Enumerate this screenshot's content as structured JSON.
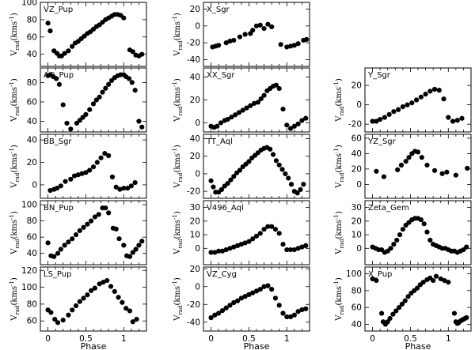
{
  "chart_data": [
    {
      "type": "scatter",
      "title": "VZ_Pup",
      "ylabel": "Vrad(kms-1)",
      "xlim": [
        -0.1,
        1.3
      ],
      "ylim": [
        26,
        100
      ],
      "yticks": [
        40,
        60,
        80,
        100
      ],
      "x": [
        0.0,
        0.03,
        0.08,
        0.12,
        0.15,
        0.18,
        0.22,
        0.27,
        0.32,
        0.36,
        0.4,
        0.44,
        0.48,
        0.52,
        0.56,
        0.6,
        0.64,
        0.68,
        0.72,
        0.76,
        0.8,
        0.84,
        0.88,
        0.92,
        0.96,
        1.0,
        1.08,
        1.12,
        1.16,
        1.2,
        1.24
      ],
      "y": [
        76,
        67,
        44,
        41,
        38,
        38,
        41,
        44,
        49,
        53,
        55,
        58,
        61,
        64,
        66,
        69,
        72,
        74,
        77,
        80,
        82,
        84,
        86,
        86,
        85,
        82,
        45,
        43,
        39,
        38,
        40
      ]
    },
    {
      "type": "scatter",
      "title": "AQ_Pup",
      "ylabel": "Vrad(kms-1)",
      "xlim": [
        -0.1,
        1.3
      ],
      "ylim": [
        29,
        95
      ],
      "yticks": [
        40,
        60,
        80
      ],
      "x": [
        0.0,
        0.03,
        0.07,
        0.11,
        0.15,
        0.2,
        0.25,
        0.3,
        0.38,
        0.42,
        0.46,
        0.5,
        0.55,
        0.6,
        0.64,
        0.68,
        0.72,
        0.76,
        0.8,
        0.84,
        0.88,
        0.92,
        0.96,
        1.0,
        1.03,
        1.07,
        1.11,
        1.15,
        1.2,
        1.24
      ],
      "y": [
        87,
        88,
        86,
        84,
        78,
        57,
        38,
        32,
        38,
        41,
        44,
        47,
        52,
        58,
        62,
        65,
        70,
        74,
        78,
        82,
        85,
        87,
        88,
        88,
        86,
        84,
        80,
        72,
        40,
        34
      ]
    },
    {
      "type": "scatter",
      "title": "BB_Sgr",
      "ylabel": "Vrad(kms-1)",
      "xlim": [
        -0.1,
        1.3
      ],
      "ylim": [
        -12,
        45
      ],
      "yticks": [
        0,
        20,
        40
      ],
      "x": [
        0.03,
        0.08,
        0.12,
        0.17,
        0.23,
        0.3,
        0.35,
        0.4,
        0.45,
        0.5,
        0.55,
        0.6,
        0.65,
        0.7,
        0.75,
        0.8,
        0.85,
        0.9,
        0.95,
        1.0,
        1.05,
        1.1,
        1.15
      ],
      "y": [
        -5,
        -4,
        -3,
        -1,
        3,
        5,
        8,
        9,
        10,
        11,
        13,
        16,
        20,
        24,
        28,
        26,
        7,
        -2,
        -4,
        -3,
        -3,
        -1,
        2
      ]
    },
    {
      "type": "scatter",
      "title": "BN_Pup",
      "ylabel": "Vrad(kms-1)",
      "xlim": [
        -0.1,
        1.3
      ],
      "ylim": [
        26,
        105
      ],
      "yticks": [
        40,
        60,
        80,
        100
      ],
      "x": [
        0.0,
        0.04,
        0.08,
        0.13,
        0.17,
        0.22,
        0.27,
        0.32,
        0.37,
        0.42,
        0.47,
        0.52,
        0.57,
        0.62,
        0.67,
        0.72,
        0.76,
        0.8,
        0.86,
        0.9,
        0.94,
        1.0,
        1.04,
        1.08,
        1.12,
        1.16,
        1.2,
        1.24
      ],
      "y": [
        53,
        37,
        36,
        40,
        45,
        50,
        54,
        58,
        63,
        68,
        72,
        76,
        80,
        85,
        88,
        96,
        96,
        90,
        71,
        70,
        58,
        50,
        37,
        36,
        41,
        45,
        50,
        55
      ]
    },
    {
      "type": "scatter",
      "title": "LS_Pup",
      "ylabel": "Vrad(kms-1)",
      "xlim": [
        -0.1,
        1.3
      ],
      "ylim": [
        48,
        124
      ],
      "yticks": [
        60,
        80,
        100,
        120
      ],
      "x": [
        0.0,
        0.04,
        0.09,
        0.13,
        0.2,
        0.27,
        0.32,
        0.37,
        0.42,
        0.47,
        0.52,
        0.57,
        0.62,
        0.68,
        0.73,
        0.78,
        0.83,
        0.88,
        0.93,
        0.98,
        1.03,
        1.08,
        1.12,
        1.17
      ],
      "y": [
        73,
        70,
        62,
        58,
        61,
        67,
        73,
        78,
        83,
        87,
        91,
        96,
        99,
        104,
        106,
        108,
        101,
        95,
        88,
        82,
        75,
        72,
        59,
        62
      ]
    },
    {
      "type": "scatter",
      "title": "X_Sgr",
      "ylabel": "Vrad(kms-1)",
      "xlim": [
        -0.1,
        1.3
      ],
      "ylim": [
        -48,
        28
      ],
      "yticks": [
        -40,
        -20,
        0,
        20
      ],
      "x": [
        0.02,
        0.06,
        0.1,
        0.2,
        0.25,
        0.3,
        0.38,
        0.45,
        0.52,
        0.55,
        0.6,
        0.65,
        0.7,
        0.75,
        0.8,
        0.92,
        1.0,
        1.05,
        1.1,
        1.15,
        1.22,
        1.26
      ],
      "y": [
        -25,
        -24,
        -23,
        -20,
        -18,
        -17,
        -13,
        -10,
        -9,
        -5,
        0,
        1,
        -3,
        2,
        -1,
        -22,
        -25,
        -24,
        -23,
        -21,
        -17,
        -16
      ]
    },
    {
      "type": "scatter",
      "title": "XX_Sgr",
      "ylabel": "Vrad(kms-1)",
      "xlim": [
        -0.1,
        1.3
      ],
      "ylim": [
        -8,
        48
      ],
      "yticks": [
        0,
        20,
        40
      ],
      "x": [
        0.0,
        0.04,
        0.08,
        0.13,
        0.18,
        0.22,
        0.27,
        0.32,
        0.37,
        0.42,
        0.47,
        0.52,
        0.57,
        0.62,
        0.66,
        0.7,
        0.74,
        0.78,
        0.82,
        0.86,
        0.9,
        0.95,
        1.0,
        1.05,
        1.1,
        1.15,
        1.2,
        1.25
      ],
      "y": [
        -3,
        -4,
        -3,
        0,
        2,
        3,
        5,
        7,
        9,
        11,
        13,
        15,
        17,
        18,
        21,
        24,
        28,
        30,
        32,
        33,
        30,
        12,
        -2,
        -5,
        -3,
        -1,
        2,
        4
      ]
    },
    {
      "type": "scatter",
      "title": "TT_Aql",
      "ylabel": "Vrad(kms-1)",
      "xlim": [
        -0.1,
        1.3
      ],
      "ylim": [
        -28,
        45
      ],
      "yticks": [
        -20,
        0,
        20,
        40
      ],
      "x": [
        0.0,
        0.03,
        0.06,
        0.1,
        0.14,
        0.18,
        0.22,
        0.26,
        0.3,
        0.34,
        0.38,
        0.42,
        0.46,
        0.5,
        0.54,
        0.58,
        0.62,
        0.66,
        0.7,
        0.74,
        0.78,
        0.82,
        0.86,
        0.9,
        0.94,
        0.98,
        1.02,
        1.06,
        1.1,
        1.14,
        1.18,
        1.22
      ],
      "y": [
        -8,
        -15,
        -21,
        -21,
        -18,
        -14,
        -11,
        -7,
        -3,
        1,
        4,
        8,
        11,
        14,
        18,
        21,
        24,
        27,
        29,
        30,
        28,
        22,
        15,
        10,
        5,
        0,
        -5,
        -12,
        -20,
        -22,
        -18,
        -12
      ]
    },
    {
      "type": "scatter",
      "title": "V496_Aql",
      "ylabel": "Vrad(kms-1)",
      "xlim": [
        -0.1,
        1.3
      ],
      "ylim": [
        -12,
        35
      ],
      "yticks": [
        0,
        10,
        20,
        30
      ],
      "x": [
        0.0,
        0.05,
        0.1,
        0.15,
        0.2,
        0.25,
        0.3,
        0.35,
        0.4,
        0.45,
        0.5,
        0.55,
        0.6,
        0.65,
        0.7,
        0.75,
        0.8,
        0.85,
        0.9,
        0.95,
        1.0,
        1.05,
        1.1,
        1.15,
        1.2,
        1.25
      ],
      "y": [
        -3,
        -3,
        -2,
        -2,
        -1,
        0,
        1,
        2,
        3,
        4,
        5,
        7,
        9,
        11,
        14,
        16,
        16,
        14,
        11,
        3,
        -1,
        -1,
        -1,
        0,
        1,
        2
      ]
    },
    {
      "type": "scatter",
      "title": "VZ_Cyg",
      "ylabel": "Vrad(kms-1)",
      "xlim": [
        -0.1,
        1.3
      ],
      "ylim": [
        -50,
        22
      ],
      "yticks": [
        -40,
        -20,
        0,
        20
      ],
      "x": [
        0.0,
        0.05,
        0.1,
        0.15,
        0.2,
        0.25,
        0.3,
        0.35,
        0.4,
        0.45,
        0.5,
        0.55,
        0.6,
        0.65,
        0.7,
        0.75,
        0.8,
        0.85,
        0.9,
        0.95,
        1.0,
        1.05,
        1.1,
        1.15,
        1.2,
        1.25
      ],
      "y": [
        -35,
        -32,
        -30,
        -27,
        -24,
        -21,
        -18,
        -16,
        -13,
        -11,
        -9,
        -7,
        -5,
        -3,
        0,
        1,
        -3,
        -13,
        -21,
        -30,
        -34,
        -34,
        -32,
        -28,
        -26,
        -25
      ]
    },
    {
      "type": "scatter",
      "title": "Y_Sgr",
      "ylabel": "Vrad(kms-1)",
      "xlim": [
        -0.1,
        1.3
      ],
      "ylim": [
        -28,
        38
      ],
      "yticks": [
        -20,
        0,
        20
      ],
      "x": [
        0.0,
        0.05,
        0.1,
        0.16,
        0.22,
        0.28,
        0.34,
        0.4,
        0.46,
        0.52,
        0.58,
        0.64,
        0.7,
        0.76,
        0.82,
        0.88,
        0.94,
        1.0,
        1.06,
        1.12,
        1.18
      ],
      "y": [
        -17,
        -17,
        -15,
        -13,
        -10,
        -7,
        -5,
        -2,
        0,
        2,
        5,
        8,
        11,
        14,
        16,
        15,
        6,
        -13,
        -17,
        -16,
        -14
      ]
    },
    {
      "type": "scatter",
      "title": "YZ_Sgr",
      "ylabel": "Vrad(kms-1)",
      "xlim": [
        -0.1,
        1.3
      ],
      "ylim": [
        -18,
        65
      ],
      "yticks": [
        -20,
        0,
        20,
        40,
        60
      ],
      "x": [
        0.05,
        0.15,
        0.33,
        0.38,
        0.44,
        0.48,
        0.52,
        0.56,
        0.6,
        0.65,
        0.72,
        0.82,
        0.92,
        0.98,
        1.1,
        1.25
      ],
      "y": [
        17,
        10,
        19,
        25,
        30,
        35,
        40,
        43,
        42,
        35,
        25,
        18,
        14,
        16,
        12,
        21
      ]
    },
    {
      "type": "scatter",
      "title": "Zeta_Gem",
      "ylabel": "Vrad(kms-1)",
      "xlim": [
        -0.1,
        1.3
      ],
      "ylim": [
        -12,
        35
      ],
      "yticks": [
        0,
        10,
        20,
        30
      ],
      "x": [
        0.0,
        0.04,
        0.08,
        0.12,
        0.16,
        0.2,
        0.24,
        0.28,
        0.32,
        0.36,
        0.4,
        0.44,
        0.48,
        0.52,
        0.56,
        0.6,
        0.64,
        0.68,
        0.72,
        0.76,
        0.8,
        0.84,
        0.88,
        0.92,
        0.96,
        1.0,
        1.04,
        1.08,
        1.12,
        1.16,
        1.2,
        1.24
      ],
      "y": [
        1,
        0,
        -1,
        -1,
        -3,
        -2,
        0,
        3,
        6,
        10,
        14,
        17,
        19,
        21,
        22,
        22,
        21,
        18,
        12,
        6,
        3,
        2,
        1,
        0,
        0,
        -1,
        -2,
        -2,
        -3,
        -2,
        -1,
        1
      ]
    },
    {
      "type": "scatter",
      "title": "X_Pup",
      "ylabel": "Vrad(kms-1)",
      "xlim": [
        -0.1,
        1.3
      ],
      "ylim": [
        32,
        108
      ],
      "yticks": [
        40,
        60,
        80,
        100
      ],
      "x": [
        0.0,
        0.05,
        0.12,
        0.14,
        0.17,
        0.2,
        0.23,
        0.27,
        0.31,
        0.35,
        0.39,
        0.43,
        0.47,
        0.51,
        0.55,
        0.59,
        0.63,
        0.67,
        0.72,
        0.76,
        0.8,
        0.84,
        0.9,
        0.95,
        1.0,
        1.08,
        1.1,
        1.12,
        1.14,
        1.16,
        1.18,
        1.2,
        1.22,
        1.24
      ],
      "y": [
        94,
        92,
        53,
        43,
        40,
        43,
        47,
        52,
        56,
        60,
        64,
        68,
        73,
        77,
        80,
        83,
        87,
        90,
        93,
        95,
        92,
        97,
        94,
        92,
        90,
        53,
        43,
        41,
        42,
        44,
        45,
        46,
        47,
        48
      ]
    }
  ],
  "axes": {
    "xlabel": "Phase",
    "xticks": [
      0,
      0.5,
      1
    ],
    "xtick_labels": [
      "0",
      "0.5",
      "1"
    ],
    "ylabel_main": "V",
    "ylabel_sub": "rad",
    "ylabel_units": "(kms",
    "ylabel_exp": "-1",
    "ylabel_close": ")"
  }
}
